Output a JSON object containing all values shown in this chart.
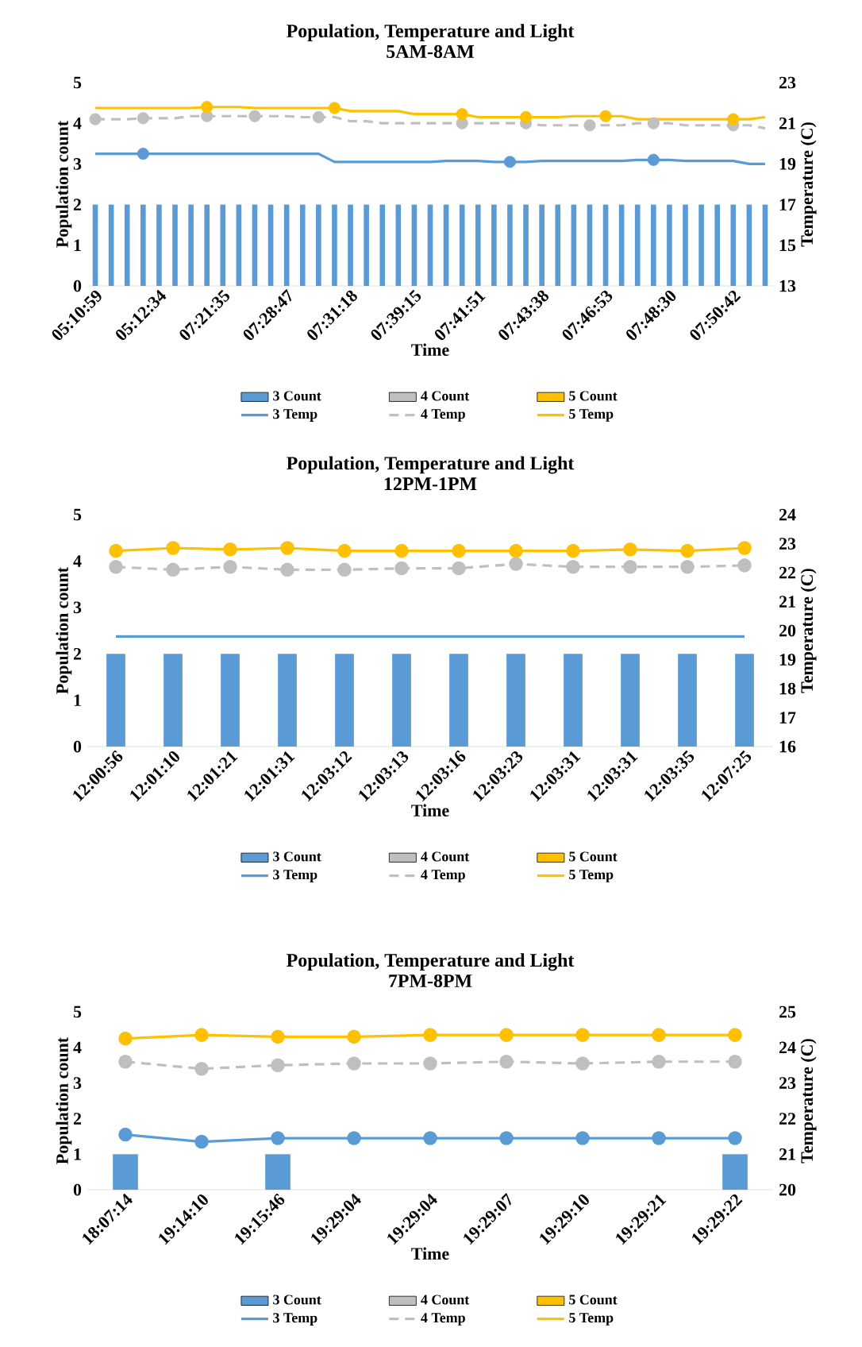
{
  "chart_data": [
    {
      "type": "bar",
      "title": "Population, Temperature and Light",
      "subtitle": "5AM-8AM",
      "xlabel": "Time",
      "ylabel": "Population count",
      "y2label": "Temperature (C)",
      "categories": [
        "05:10:59",
        null,
        null,
        null,
        "05:12:34",
        null,
        null,
        null,
        "07:21:35",
        null,
        null,
        null,
        "07:28:47",
        null,
        null,
        null,
        "07:31:18",
        null,
        null,
        null,
        "07:39:15",
        null,
        null,
        null,
        "07:41:51",
        null,
        null,
        null,
        "07:43:38",
        null,
        null,
        null,
        "07:46:53",
        null,
        null,
        null,
        "07:48:30",
        null,
        null,
        null,
        "07:50:42",
        null,
        null
      ],
      "ylim": [
        0,
        5
      ],
      "yticks": [
        0,
        1,
        2,
        3,
        4,
        5
      ],
      "y2lim": [
        13,
        23
      ],
      "y2ticks": [
        13,
        15,
        17,
        19,
        21,
        23
      ],
      "legend": "bottom",
      "series": [
        {
          "name": "3 Count",
          "type": "bar",
          "color": "#5b9bd5",
          "values": [
            2,
            2,
            2,
            2,
            2,
            2,
            2,
            2,
            2,
            2,
            2,
            2,
            2,
            2,
            2,
            2,
            2,
            2,
            2,
            2,
            2,
            2,
            2,
            2,
            2,
            2,
            2,
            2,
            2,
            2,
            2,
            2,
            2,
            2,
            2,
            2,
            2,
            2,
            2,
            2,
            2,
            2,
            2
          ]
        },
        {
          "name": "4 Count",
          "type": "bar",
          "color": "#bfbfbf",
          "values": [
            null,
            null,
            null,
            null,
            null,
            null,
            null,
            null,
            null,
            null,
            null,
            null,
            null,
            null,
            null,
            null,
            null,
            null,
            null,
            null,
            null,
            null,
            null,
            null,
            null,
            null,
            null,
            null,
            null,
            null,
            null,
            null,
            null,
            null,
            null,
            null,
            null,
            null,
            null,
            null,
            null,
            null,
            null
          ]
        },
        {
          "name": "5 Count",
          "type": "bar",
          "color": "#ffc000",
          "values": [
            null,
            null,
            null,
            null,
            null,
            null,
            null,
            null,
            null,
            null,
            null,
            null,
            null,
            null,
            null,
            null,
            null,
            null,
            null,
            null,
            null,
            null,
            null,
            null,
            null,
            null,
            null,
            null,
            null,
            null,
            null,
            null,
            null,
            null,
            null,
            null,
            null,
            null,
            null,
            null,
            null,
            null,
            null
          ]
        },
        {
          "name": "3 Temp",
          "type": "line",
          "axis": "y2",
          "color": "#5b9bd5",
          "line_style": "solid",
          "marker": "none",
          "values": [
            19.5,
            19.5,
            19.5,
            19.5,
            19.5,
            19.5,
            19.5,
            19.5,
            19.5,
            19.5,
            19.5,
            19.5,
            19.5,
            19.5,
            19.5,
            19.1,
            19.1,
            19.1,
            19.1,
            19.1,
            19.1,
            19.1,
            19.15,
            19.15,
            19.15,
            19.1,
            19.1,
            19.1,
            19.15,
            19.15,
            19.15,
            19.15,
            19.15,
            19.15,
            19.2,
            19.2,
            19.2,
            19.15,
            19.15,
            19.15,
            19.15,
            19.0,
            19.0
          ]
        },
        {
          "name": "4 Temp",
          "type": "line",
          "axis": "y2",
          "color": "#bfbfbf",
          "line_style": "dashed",
          "marker": "none",
          "values": [
            21.2,
            21.2,
            21.2,
            21.25,
            21.25,
            21.25,
            21.35,
            21.35,
            21.35,
            21.35,
            21.35,
            21.35,
            21.35,
            21.3,
            21.3,
            21.3,
            21.1,
            21.1,
            21.0,
            21.0,
            21.0,
            21.0,
            21.0,
            21.0,
            21.0,
            21.0,
            21.0,
            21.0,
            20.9,
            20.9,
            20.9,
            20.9,
            20.9,
            20.9,
            21.0,
            21.0,
            21.0,
            20.9,
            20.9,
            20.9,
            20.9,
            20.9,
            20.75
          ]
        },
        {
          "name": "5 Temp",
          "type": "line",
          "axis": "y2",
          "color": "#ffc000",
          "line_style": "solid",
          "marker": "none",
          "values": [
            21.75,
            21.75,
            21.75,
            21.75,
            21.75,
            21.75,
            21.75,
            21.8,
            21.8,
            21.8,
            21.75,
            21.75,
            21.75,
            21.75,
            21.75,
            21.75,
            21.6,
            21.6,
            21.6,
            21.6,
            21.45,
            21.45,
            21.45,
            21.45,
            21.3,
            21.3,
            21.3,
            21.3,
            21.3,
            21.3,
            21.35,
            21.35,
            21.35,
            21.35,
            21.2,
            21.2,
            21.2,
            21.2,
            21.2,
            21.2,
            21.2,
            21.2,
            21.3
          ]
        },
        {
          "type": "scatter",
          "axis": "y2",
          "color": "#5b9bd5",
          "marker": "circle",
          "values": [
            null,
            null,
            null,
            19.5,
            null,
            null,
            null,
            null,
            null,
            null,
            null,
            null,
            null,
            null,
            null,
            null,
            null,
            null,
            null,
            null,
            null,
            null,
            null,
            null,
            null,
            null,
            19.1,
            null,
            null,
            null,
            null,
            null,
            null,
            null,
            null,
            19.2,
            null,
            null,
            null,
            null,
            null,
            null,
            null
          ]
        },
        {
          "type": "scatter",
          "axis": "y2",
          "color": "#bfbfbf",
          "marker": "circle",
          "values": [
            21.2,
            null,
            null,
            21.25,
            null,
            null,
            null,
            21.35,
            null,
            null,
            21.35,
            null,
            null,
            null,
            21.3,
            null,
            null,
            null,
            null,
            null,
            null,
            null,
            null,
            21.0,
            null,
            null,
            null,
            21.0,
            null,
            null,
            null,
            20.9,
            null,
            null,
            null,
            21.0,
            null,
            null,
            null,
            null,
            20.9,
            null,
            null
          ]
        },
        {
          "type": "scatter",
          "axis": "y2",
          "color": "#ffc000",
          "marker": "circle",
          "values": [
            null,
            null,
            null,
            null,
            null,
            null,
            null,
            21.8,
            null,
            null,
            null,
            null,
            null,
            null,
            null,
            21.75,
            null,
            null,
            null,
            null,
            null,
            null,
            null,
            21.45,
            null,
            null,
            null,
            21.3,
            null,
            null,
            null,
            null,
            21.35,
            null,
            null,
            null,
            null,
            null,
            null,
            null,
            21.2,
            null,
            null
          ]
        }
      ]
    },
    {
      "type": "bar",
      "title": "Population, Temperature and Light",
      "subtitle": "12PM-1PM",
      "xlabel": "Time",
      "ylabel": "Population count",
      "y2label": "Temperature (C)",
      "categories": [
        "12:00:56",
        "12:01:10",
        "12:01:21",
        "12:01:31",
        "12:03:12",
        "12:03:13",
        "12:03:16",
        "12:03:23",
        "12:03:31",
        "12:03:31",
        "12:03:35",
        "12:07:25"
      ],
      "ylim": [
        0,
        5
      ],
      "yticks": [
        0,
        1,
        2,
        3,
        4,
        5
      ],
      "y2lim": [
        16,
        24
      ],
      "y2ticks": [
        16,
        17,
        18,
        19,
        20,
        21,
        22,
        23,
        24
      ],
      "legend": "bottom",
      "series": [
        {
          "name": "3 Count",
          "type": "bar",
          "color": "#5b9bd5",
          "values": [
            2,
            2,
            2,
            2,
            2,
            2,
            2,
            2,
            2,
            2,
            2,
            2
          ]
        },
        {
          "name": "4 Count",
          "type": "bar",
          "color": "#bfbfbf",
          "values": [
            null,
            null,
            null,
            null,
            null,
            null,
            null,
            null,
            null,
            null,
            null,
            null
          ]
        },
        {
          "name": "5 Count",
          "type": "bar",
          "color": "#ffc000",
          "values": [
            null,
            null,
            null,
            null,
            null,
            null,
            null,
            null,
            null,
            null,
            null,
            null
          ]
        },
        {
          "name": "3 Temp",
          "type": "line",
          "axis": "y2",
          "color": "#5b9bd5",
          "line_style": "solid",
          "marker": "none",
          "values": [
            19.8,
            19.8,
            19.8,
            19.8,
            19.8,
            19.8,
            19.8,
            19.8,
            19.8,
            19.8,
            19.8,
            19.8
          ]
        },
        {
          "name": "4 Temp",
          "type": "line",
          "axis": "y2",
          "color": "#bfbfbf",
          "line_style": "dashed",
          "marker": "circle",
          "values": [
            22.2,
            22.1,
            22.2,
            22.1,
            22.1,
            22.15,
            22.15,
            22.3,
            22.2,
            22.2,
            22.2,
            22.25
          ]
        },
        {
          "name": "5 Temp",
          "type": "line",
          "axis": "y2",
          "color": "#ffc000",
          "line_style": "solid",
          "marker": "circle",
          "values": [
            22.75,
            22.85,
            22.8,
            22.85,
            22.75,
            22.75,
            22.75,
            22.75,
            22.75,
            22.8,
            22.75,
            22.85
          ]
        }
      ]
    },
    {
      "type": "bar",
      "title": "Population, Temperature and Light",
      "subtitle": "7PM-8PM",
      "xlabel": "Time",
      "ylabel": "Population count",
      "y2label": "Temperature (C)",
      "categories": [
        "18:07:14",
        "19:14:10",
        "19:15:46",
        "19:29:04",
        "19:29:04",
        "19:29:07",
        "19:29:10",
        "19:29:21",
        "19:29:22"
      ],
      "ylim": [
        0,
        5
      ],
      "yticks": [
        0,
        1,
        2,
        3,
        4,
        5
      ],
      "y2lim": [
        20,
        25
      ],
      "y2ticks": [
        20,
        21,
        22,
        23,
        24,
        25
      ],
      "legend": "bottom",
      "series": [
        {
          "name": "3 Count",
          "type": "bar",
          "color": "#5b9bd5",
          "values": [
            1,
            0,
            1,
            0,
            0,
            0,
            0,
            0,
            1
          ]
        },
        {
          "name": "4 Count",
          "type": "bar",
          "color": "#bfbfbf",
          "values": [
            null,
            null,
            null,
            null,
            null,
            null,
            null,
            null,
            null
          ]
        },
        {
          "name": "5 Count",
          "type": "bar",
          "color": "#ffc000",
          "values": [
            null,
            null,
            null,
            null,
            null,
            null,
            null,
            null,
            null
          ]
        },
        {
          "name": "3 Temp",
          "type": "line",
          "axis": "y2",
          "color": "#5b9bd5",
          "line_style": "solid",
          "marker": "circle",
          "values": [
            21.55,
            21.35,
            21.45,
            21.45,
            21.45,
            21.45,
            21.45,
            21.45,
            21.45
          ]
        },
        {
          "name": "4 Temp",
          "type": "line",
          "axis": "y2",
          "color": "#bfbfbf",
          "line_style": "dashed",
          "marker": "circle",
          "values": [
            23.6,
            23.4,
            23.5,
            23.55,
            23.55,
            23.6,
            23.55,
            23.6,
            23.6
          ]
        },
        {
          "name": "5 Temp",
          "type": "line",
          "axis": "y2",
          "color": "#ffc000",
          "line_style": "solid",
          "marker": "circle",
          "values": [
            24.25,
            24.35,
            24.3,
            24.3,
            24.35,
            24.35,
            24.35,
            24.35,
            24.35
          ]
        }
      ]
    }
  ]
}
